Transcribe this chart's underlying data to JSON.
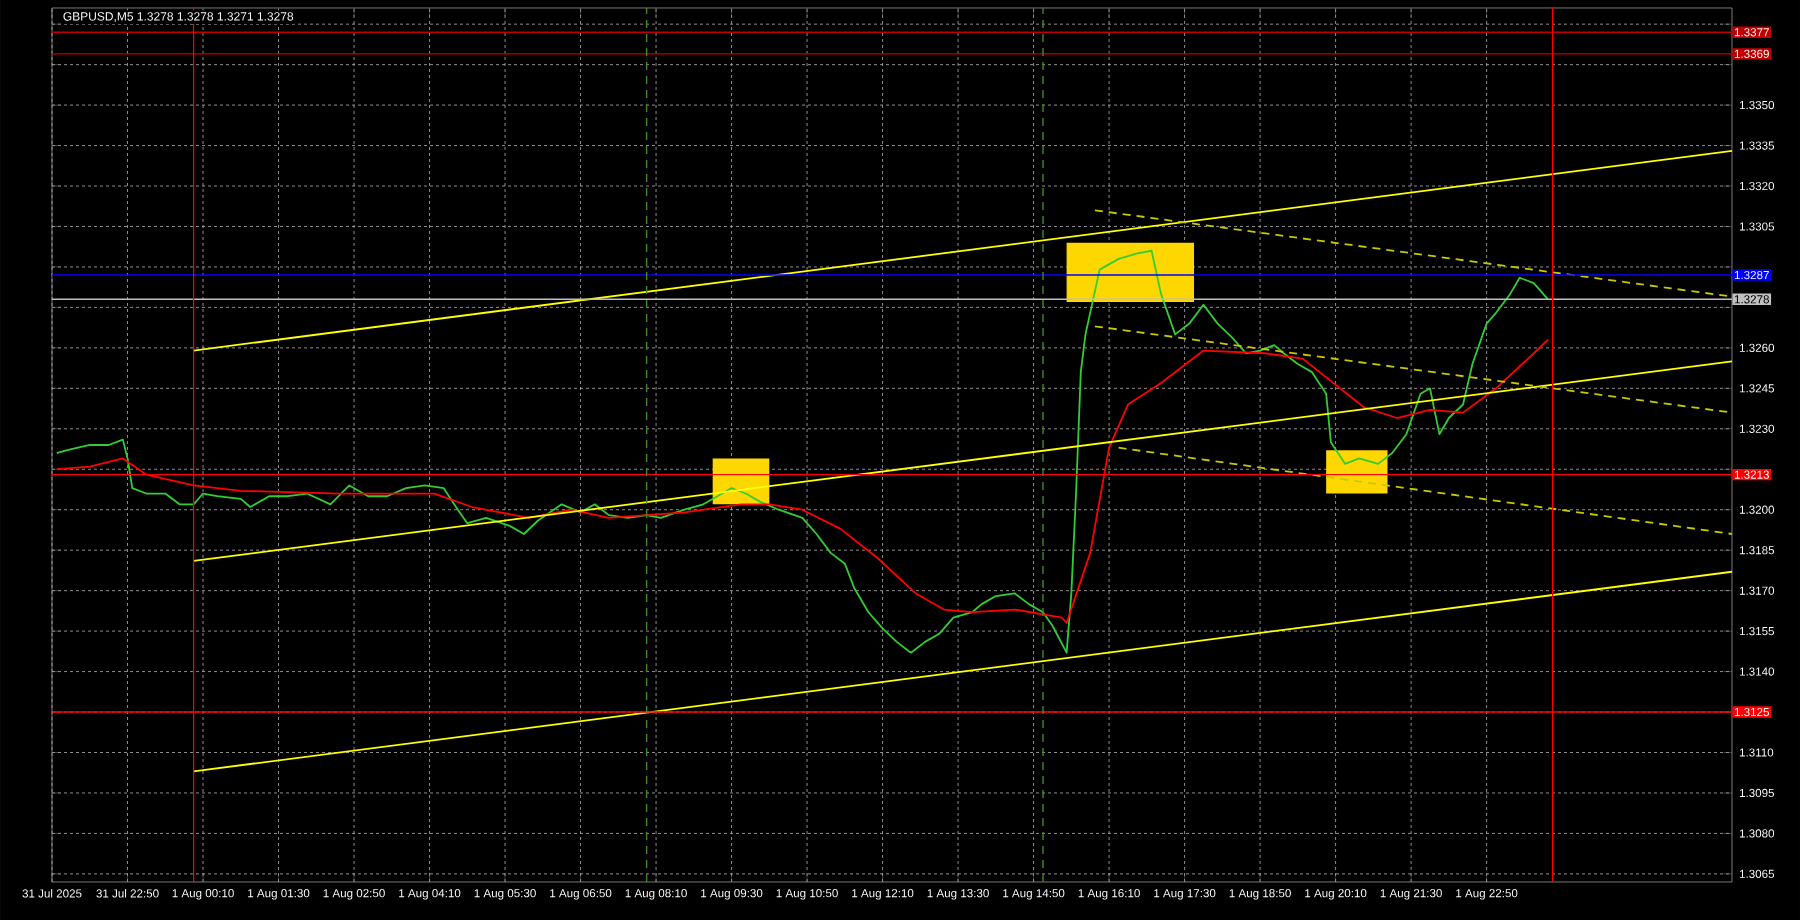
{
  "chart_data": {
    "type": "line",
    "title": "GBPUSD,M5  1.3278 1.3278 1.3271 1.3278",
    "grid": true,
    "xlim": [
      "2025-07-31T21:30",
      "2025-08-02T03:10"
    ],
    "ylim": [
      1.3062,
      1.3386
    ],
    "xticks": [
      {
        "value": "2025-07-31T21:30",
        "label": "31 Jul 2025"
      },
      {
        "value": "2025-07-31T22:50",
        "label": "31 Jul 22:50"
      },
      {
        "value": "2025-08-01T00:10",
        "label": "1 Aug 00:10"
      },
      {
        "value": "2025-08-01T01:30",
        "label": "1 Aug 01:30"
      },
      {
        "value": "2025-08-01T02:50",
        "label": "1 Aug 02:50"
      },
      {
        "value": "2025-08-01T04:10",
        "label": "1 Aug 04:10"
      },
      {
        "value": "2025-08-01T05:30",
        "label": "1 Aug 05:30"
      },
      {
        "value": "2025-08-01T06:50",
        "label": "1 Aug 06:50"
      },
      {
        "value": "2025-08-01T08:10",
        "label": "1 Aug 08:10"
      },
      {
        "value": "2025-08-01T09:30",
        "label": "1 Aug 09:30"
      },
      {
        "value": "2025-08-01T10:50",
        "label": "1 Aug 10:50"
      },
      {
        "value": "2025-08-01T12:10",
        "label": "1 Aug 12:10"
      },
      {
        "value": "2025-08-01T13:30",
        "label": "1 Aug 13:30"
      },
      {
        "value": "2025-08-01T14:50",
        "label": "1 Aug 14:50"
      },
      {
        "value": "2025-08-01T16:10",
        "label": "1 Aug 16:10"
      },
      {
        "value": "2025-08-01T17:30",
        "label": "1 Aug 17:30"
      },
      {
        "value": "2025-08-01T18:50",
        "label": "1 Aug 18:50"
      },
      {
        "value": "2025-08-01T20:10",
        "label": "1 Aug 20:10"
      },
      {
        "value": "2025-08-01T21:30",
        "label": "1 Aug 21:30"
      },
      {
        "value": "2025-08-01T22:50",
        "label": "1 Aug 22:50"
      }
    ],
    "yticks": [
      {
        "value": 1.3065,
        "label": "1.3065"
      },
      {
        "value": 1.308,
        "label": "1.3080"
      },
      {
        "value": 1.3095,
        "label": "1.3095"
      },
      {
        "value": 1.311,
        "label": "1.3110"
      },
      {
        "value": 1.3125,
        "label": null
      },
      {
        "value": 1.314,
        "label": "1.3140"
      },
      {
        "value": 1.3155,
        "label": "1.3155"
      },
      {
        "value": 1.317,
        "label": "1.3170"
      },
      {
        "value": 1.3185,
        "label": "1.3185"
      },
      {
        "value": 1.32,
        "label": "1.3200"
      },
      {
        "value": 1.3215,
        "label": null
      },
      {
        "value": 1.323,
        "label": "1.3230"
      },
      {
        "value": 1.3245,
        "label": "1.3245"
      },
      {
        "value": 1.326,
        "label": "1.3260"
      },
      {
        "value": 1.3275,
        "label": null
      },
      {
        "value": 1.329,
        "label": null
      },
      {
        "value": 1.3305,
        "label": "1.3305"
      },
      {
        "value": 1.332,
        "label": "1.3320"
      },
      {
        "value": 1.3335,
        "label": "1.3335"
      },
      {
        "value": 1.335,
        "label": "1.3350"
      },
      {
        "value": 1.3365,
        "label": null
      },
      {
        "value": 1.338,
        "label": null
      }
    ],
    "series": [
      {
        "color": "#ffd700",
        "x": [
          "2025-08-01T09:10",
          "2025-08-01T10:10"
        ],
        "lower": [
          1.3202,
          1.3202
        ],
        "upper": [
          1.3219,
          1.3219
        ],
        "values": [
          null,
          null
        ]
      },
      {
        "color": "#ffd700",
        "x": [
          "2025-08-01T15:25",
          "2025-08-01T17:40"
        ],
        "lower": [
          1.3277,
          1.3277
        ],
        "upper": [
          1.3299,
          1.3299
        ],
        "values": [
          null,
          null
        ]
      },
      {
        "color": "#ffd700",
        "x": [
          "2025-08-01T20:00",
          "2025-08-01T21:05"
        ],
        "lower": [
          1.3206,
          1.3206
        ],
        "upper": [
          1.3222,
          1.3222
        ],
        "values": [
          null,
          null
        ]
      },
      {
        "color": "#32cd32",
        "x": [
          "2025-07-31T21:35",
          "2025-07-31T21:45",
          "2025-07-31T22:10",
          "2025-07-31T22:30",
          "2025-07-31T22:45",
          "2025-07-31T22:50",
          "2025-07-31T22:55",
          "2025-07-31T23:10",
          "2025-07-31T23:30",
          "2025-07-31T23:45",
          "2025-08-01T00:00",
          "2025-08-01T00:10",
          "2025-08-01T00:25",
          "2025-08-01T00:50",
          "2025-08-01T01:00",
          "2025-08-01T01:20",
          "2025-08-01T01:40",
          "2025-08-01T02:00",
          "2025-08-01T02:25",
          "2025-08-01T02:45",
          "2025-08-01T03:05",
          "2025-08-01T03:25",
          "2025-08-01T03:45",
          "2025-08-01T04:05",
          "2025-08-01T04:25",
          "2025-08-01T04:40",
          "2025-08-01T04:50",
          "2025-08-01T05:10",
          "2025-08-01T05:35",
          "2025-08-01T05:50",
          "2025-08-01T06:05",
          "2025-08-01T06:30",
          "2025-08-01T06:50",
          "2025-08-01T07:05",
          "2025-08-01T07:20",
          "2025-08-01T07:40",
          "2025-08-01T08:00",
          "2025-08-01T08:15",
          "2025-08-01T08:40",
          "2025-08-01T09:00",
          "2025-08-01T09:15",
          "2025-08-01T09:30",
          "2025-08-01T09:45",
          "2025-08-01T10:00",
          "2025-08-01T10:20",
          "2025-08-01T10:45",
          "2025-08-01T11:00",
          "2025-08-01T11:15",
          "2025-08-01T11:30",
          "2025-08-01T11:40",
          "2025-08-01T11:55",
          "2025-08-01T12:10",
          "2025-08-01T12:25",
          "2025-08-01T12:40",
          "2025-08-01T12:55",
          "2025-08-01T13:10",
          "2025-08-01T13:25",
          "2025-08-01T13:45",
          "2025-08-01T13:55",
          "2025-08-01T14:10",
          "2025-08-01T14:30",
          "2025-08-01T14:45",
          "2025-08-01T15:00",
          "2025-08-01T15:10",
          "2025-08-01T15:25",
          "2025-08-01T15:30",
          "2025-08-01T15:35",
          "2025-08-01T15:40",
          "2025-08-01T15:45",
          "2025-08-01T16:00",
          "2025-08-01T16:20",
          "2025-08-01T16:40",
          "2025-08-01T16:55",
          "2025-08-01T17:05",
          "2025-08-01T17:20",
          "2025-08-01T17:35",
          "2025-08-01T17:50",
          "2025-08-01T18:05",
          "2025-08-01T18:20",
          "2025-08-01T18:35",
          "2025-08-01T18:50",
          "2025-08-01T19:05",
          "2025-08-01T19:15",
          "2025-08-01T19:30",
          "2025-08-01T19:45",
          "2025-08-01T20:00",
          "2025-08-01T20:05",
          "2025-08-01T20:20",
          "2025-08-01T20:35",
          "2025-08-01T20:55",
          "2025-08-01T21:10",
          "2025-08-01T21:25",
          "2025-08-01T21:40",
          "2025-08-01T21:50",
          "2025-08-01T22:00",
          "2025-08-01T22:10",
          "2025-08-01T22:25",
          "2025-08-01T22:35",
          "2025-08-01T22:50",
          "2025-08-01T23:00",
          "2025-08-01T23:15",
          "2025-08-01T23:25",
          "2025-08-01T23:40",
          "2025-08-01T23:50",
          "2025-08-01T23:55"
        ],
        "values": [
          1.3221,
          1.3222,
          1.3224,
          1.3224,
          1.3226,
          1.3219,
          1.3208,
          1.3206,
          1.3206,
          1.3202,
          1.3202,
          1.3206,
          1.3205,
          1.3204,
          1.3201,
          1.3205,
          1.3205,
          1.3206,
          1.3202,
          1.3209,
          1.3205,
          1.3205,
          1.3208,
          1.3209,
          1.3208,
          1.32,
          1.3195,
          1.3197,
          1.3194,
          1.3191,
          1.3196,
          1.3202,
          1.3199,
          1.3202,
          1.3198,
          1.3197,
          1.3198,
          1.3197,
          1.32,
          1.3202,
          1.3205,
          1.3208,
          1.3206,
          1.3203,
          1.32,
          1.3197,
          1.3191,
          1.3184,
          1.318,
          1.3171,
          1.3162,
          1.3156,
          1.3151,
          1.3147,
          1.3151,
          1.3154,
          1.316,
          1.3162,
          1.3165,
          1.3168,
          1.3169,
          1.3165,
          1.3162,
          1.3157,
          1.3147,
          1.3169,
          1.3206,
          1.3251,
          1.3265,
          1.3289,
          1.3293,
          1.3295,
          1.3296,
          1.328,
          1.3265,
          1.3269,
          1.3276,
          1.3269,
          1.3264,
          1.3258,
          1.3259,
          1.3261,
          1.3258,
          1.3254,
          1.3251,
          1.3243,
          1.3225,
          1.3217,
          1.3219,
          1.3217,
          1.3221,
          1.3228,
          1.3243,
          1.3245,
          1.3228,
          1.3234,
          1.3239,
          1.3254,
          1.3269,
          1.3273,
          1.328,
          1.3286,
          1.3284,
          1.328,
          1.3278
        ]
      },
      {
        "color": "#ff0000",
        "x": [
          "2025-07-31T21:35",
          "2025-07-31T22:10",
          "2025-07-31T22:45",
          "2025-07-31T23:10",
          "2025-08-01T00:00",
          "2025-08-01T00:50",
          "2025-08-01T02:35",
          "2025-08-01T04:15",
          "2025-08-01T04:55",
          "2025-08-01T05:55",
          "2025-08-01T06:40",
          "2025-08-01T07:20",
          "2025-08-01T08:40",
          "2025-08-01T09:40",
          "2025-08-01T10:10",
          "2025-08-01T10:45",
          "2025-08-01T11:25",
          "2025-08-01T12:05",
          "2025-08-01T12:45",
          "2025-08-01T13:15",
          "2025-08-01T13:45",
          "2025-08-01T14:30",
          "2025-08-01T15:20",
          "2025-08-01T15:25",
          "2025-08-01T15:50",
          "2025-08-01T16:10",
          "2025-08-01T16:30",
          "2025-08-01T17:05",
          "2025-08-01T17:50",
          "2025-08-01T18:55",
          "2025-08-01T19:35",
          "2025-08-01T20:40",
          "2025-08-01T21:15",
          "2025-08-01T21:50",
          "2025-08-01T22:25",
          "2025-08-01T23:00",
          "2025-08-01T23:40",
          "2025-08-01T23:55"
        ],
        "values": [
          1.3215,
          1.3216,
          1.3219,
          1.3213,
          1.3209,
          1.3207,
          1.3206,
          1.3206,
          1.3201,
          1.3197,
          1.32,
          1.3197,
          1.3199,
          1.3202,
          1.3202,
          1.32,
          1.3193,
          1.3182,
          1.3169,
          1.3163,
          1.3162,
          1.3163,
          1.316,
          1.3158,
          1.3184,
          1.3223,
          1.3239,
          1.3247,
          1.3259,
          1.3258,
          1.3256,
          1.3238,
          1.3234,
          1.3237,
          1.3236,
          1.3245,
          1.3258,
          1.3263
        ]
      },
      {
        "color": "#ffff00",
        "x": [
          "2025-08-01T00:00",
          "2025-08-02T03:10"
        ],
        "values": [
          1.3259,
          1.3333
        ]
      },
      {
        "color": "#ffff00",
        "x": [
          "2025-08-01T00:00",
          "2025-08-02T03:10"
        ],
        "values": [
          1.3181,
          1.3255
        ]
      },
      {
        "color": "#ffff00",
        "x": [
          "2025-08-01T00:00",
          "2025-08-02T03:10"
        ],
        "values": [
          1.3103,
          1.3177
        ]
      },
      {
        "color": "#c8c800",
        "line_style": "dashed",
        "x": [
          "2025-08-01T15:55",
          "2025-08-02T03:10"
        ],
        "values": [
          1.3311,
          1.3279
        ]
      },
      {
        "color": "#c8c800",
        "line_style": "dashed",
        "x": [
          "2025-08-01T15:55",
          "2025-08-02T03:10"
        ],
        "values": [
          1.3268,
          1.3236
        ]
      },
      {
        "color": "#c8c800",
        "line_style": "dashed",
        "x": [
          "2025-08-01T16:20",
          "2025-08-02T03:10"
        ],
        "values": [
          1.3223,
          1.3191
        ]
      }
    ],
    "ref_lines": [
      {
        "axis": "y",
        "value": 1.3377,
        "label": "1.3377",
        "color": "#c00000"
      },
      {
        "axis": "y",
        "value": 1.3369,
        "label": "1.3369",
        "color": "#c00000"
      },
      {
        "axis": "y",
        "value": 1.3287,
        "label": "1.3287",
        "color": "#0000ff"
      },
      {
        "axis": "y",
        "value": 1.3278,
        "label": "1.3278",
        "color": "#c0c0c0"
      },
      {
        "axis": "y",
        "value": 1.3213,
        "label": "1.3213",
        "color": "#ff0000"
      },
      {
        "axis": "y",
        "value": 1.3125,
        "label": "1.3125",
        "color": "#ff0000"
      },
      {
        "axis": "x",
        "value": "2025-08-01T00:00",
        "color": "#ff0000"
      },
      {
        "axis": "x",
        "value": "2025-08-02T00:00",
        "color": "#ff0000"
      },
      {
        "axis": "x",
        "value": "2025-08-01T08:00",
        "color": "#3c8c1e",
        "line_style": "dashed"
      },
      {
        "axis": "x",
        "value": "2025-08-01T15:00",
        "color": "#3c8c1e",
        "line_style": "dashed"
      }
    ]
  }
}
